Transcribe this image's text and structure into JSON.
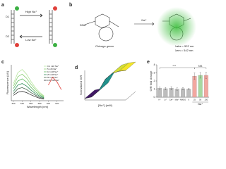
{
  "figure": {
    "a": {
      "panel": "a",
      "high": "High Na⁺",
      "low": "Low Na⁺",
      "d1": "D1",
      "d2": "D2"
    },
    "b": {
      "panel": "b",
      "dna": "DNA",
      "ion": "Na⁺",
      "name": "Chicago green",
      "abs": "λabs = 522 nm",
      "em": "λem = 542 nm"
    }
  },
  "chart_data": [
    {
      "type": "line",
      "panel": "c",
      "xlabel": "Wavelength (nm)",
      "ylabel": "Fluorescence (AU)",
      "x": [
        520,
        530,
        540,
        550,
        560,
        570,
        580,
        590,
        600,
        610,
        620,
        630
      ],
      "xlim": [
        515,
        635
      ],
      "xticks": [
        520,
        540,
        560,
        580,
        600,
        620
      ],
      "ylim": [
        0,
        1.15
      ],
      "series": [
        {
          "name": "0.1 mM Na⁺",
          "color": "#b8e6a0",
          "values": [
            0.55,
            0.9,
            1,
            0.85,
            0.62,
            0.42,
            0.27,
            0.16,
            null,
            null,
            null,
            null
          ]
        },
        {
          "name": "5 mM Na⁺",
          "color": "#8fd07a",
          "values": [
            0.47,
            0.77,
            0.85,
            0.72,
            0.53,
            0.36,
            0.23,
            0.14,
            null,
            null,
            null,
            null
          ]
        },
        {
          "name": "10 mM Na⁺",
          "color": "#5cb85c",
          "values": [
            0.39,
            0.63,
            0.7,
            0.6,
            0.43,
            0.29,
            0.19,
            0.11,
            null,
            null,
            null,
            null
          ]
        },
        {
          "name": "25 mM Na⁺",
          "color": "#2e8b57",
          "values": [
            0.3,
            0.5,
            0.55,
            0.47,
            0.34,
            0.23,
            0.15,
            0.09,
            null,
            null,
            null,
            null
          ]
        },
        {
          "name": "50 mM Na⁺",
          "color": "#44634a",
          "values": [
            0.23,
            0.38,
            0.42,
            0.36,
            0.26,
            0.18,
            0.11,
            0.07,
            null,
            null,
            null,
            null
          ]
        },
        {
          "name": "150 mM Na⁺",
          "color": "#333333",
          "values": [
            0.17,
            0.27,
            0.3,
            0.26,
            0.19,
            0.13,
            0.08,
            0.05,
            null,
            null,
            null,
            null
          ]
        },
        {
          "color": "#e0403a",
          "values": [
            null,
            null,
            null,
            null,
            null,
            null,
            null,
            null,
            0.5,
            0.75,
            0.6,
            0.35
          ]
        }
      ]
    },
    {
      "type": "surface",
      "panel": "d",
      "xlabel": "[Na⁺] (mM)",
      "ylabel": "Normalized G/R",
      "x": [
        0,
        25,
        50,
        75,
        100,
        125,
        150
      ],
      "values": [
        0.05,
        0.1,
        0.3,
        0.7,
        0.9,
        0.97,
        1
      ],
      "xlim": [
        0,
        150
      ],
      "ylim": [
        0,
        1
      ]
    },
    {
      "type": "bar",
      "panel": "e",
      "ylabel": "G/R fold change",
      "categories": [
        "K⁺",
        "Li⁺",
        "Ca²⁺",
        "Mg²⁺",
        "NMDG",
        "0",
        "25",
        "50",
        "150"
      ],
      "values": [
        1.1,
        1.05,
        1.1,
        1.0,
        1.05,
        1.0,
        2.6,
        2.7,
        2.7
      ],
      "errors": [
        0.15,
        0.15,
        0.2,
        0.15,
        0.15,
        0.1,
        0.4,
        0.35,
        0.4
      ],
      "colors": [
        "#bdbdbd",
        "#bdbdbd",
        "#bdbdbd",
        "#bdbdbd",
        "#bdbdbd",
        "#bdbdbd",
        "#f2a7a0",
        "#a8d8a0",
        "#f2a7a0"
      ],
      "ylim": [
        0,
        4
      ],
      "yticks": [
        0,
        1,
        2,
        3,
        4
      ],
      "group_label": "Na⁺",
      "annotations": [
        "***",
        "NS"
      ]
    }
  ]
}
